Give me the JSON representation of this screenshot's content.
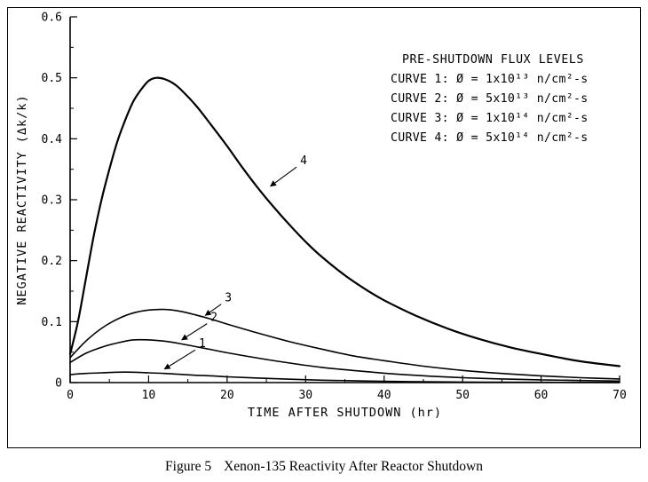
{
  "figure": {
    "caption_label": "Figure 5",
    "caption_text": "Xenon-135 Reactivity After Reactor Shutdown"
  },
  "chart_data": {
    "type": "line",
    "title": "",
    "xlabel": "TIME AFTER SHUTDOWN (hr)",
    "ylabel": "NEGATIVE REACTIVITY (Δk/k)",
    "xlim": [
      0,
      70
    ],
    "ylim": [
      0,
      0.6
    ],
    "grid": false,
    "x_ticks": [
      0,
      10,
      20,
      30,
      40,
      50,
      60,
      70
    ],
    "x_minor_ticks": [
      5,
      15,
      25,
      35,
      45,
      55,
      65
    ],
    "y_ticks": [
      0,
      0.1,
      0.2,
      0.3,
      0.4,
      0.5,
      0.6
    ],
    "y_tick_labels": [
      "0",
      "0.1",
      "0.2",
      "0.3",
      "0.4",
      "0.5",
      "0.6"
    ],
    "y_minor_ticks": [
      0.05,
      0.15,
      0.25,
      0.35,
      0.45,
      0.55
    ],
    "legend": {
      "title": "PRE-SHUTDOWN FLUX LEVELS",
      "position": "top-right",
      "entries": [
        "CURVE 1: Ø = 1x10¹³ n/cm²-s",
        "CURVE 2: Ø = 5x10¹³ n/cm²-s",
        "CURVE 3: Ø = 1x10¹⁴ n/cm²-s",
        "CURVE 4: Ø = 5x10¹⁴ n/cm²-s"
      ]
    },
    "series": [
      {
        "name": "Curve 1",
        "flux": "1x10¹³ n/cm²-s",
        "points": [
          [
            0,
            0.013
          ],
          [
            2,
            0.015
          ],
          [
            4,
            0.016
          ],
          [
            6,
            0.017
          ],
          [
            8,
            0.017
          ],
          [
            10,
            0.016
          ],
          [
            12,
            0.015
          ],
          [
            14,
            0.0135
          ],
          [
            16,
            0.012
          ],
          [
            18,
            0.011
          ],
          [
            20,
            0.0095
          ],
          [
            24,
            0.0075
          ],
          [
            28,
            0.0055
          ],
          [
            32,
            0.004
          ],
          [
            36,
            0.003
          ],
          [
            40,
            0.002
          ],
          [
            45,
            0.0013
          ],
          [
            50,
            0.0009
          ],
          [
            55,
            0.0006
          ],
          [
            60,
            0.0004
          ],
          [
            65,
            0.0003
          ],
          [
            70,
            0.0002
          ]
        ]
      },
      {
        "name": "Curve 2",
        "flux": "5x10¹³ n/cm²-s",
        "points": [
          [
            0,
            0.033
          ],
          [
            2,
            0.048
          ],
          [
            4,
            0.058
          ],
          [
            6,
            0.065
          ],
          [
            8,
            0.07
          ],
          [
            10,
            0.07
          ],
          [
            12,
            0.068
          ],
          [
            14,
            0.064
          ],
          [
            16,
            0.059
          ],
          [
            18,
            0.054
          ],
          [
            20,
            0.049
          ],
          [
            24,
            0.04
          ],
          [
            28,
            0.032
          ],
          [
            32,
            0.025
          ],
          [
            36,
            0.02
          ],
          [
            40,
            0.0155
          ],
          [
            45,
            0.0112
          ],
          [
            50,
            0.008
          ],
          [
            55,
            0.006
          ],
          [
            60,
            0.0045
          ],
          [
            65,
            0.0033
          ],
          [
            70,
            0.0025
          ]
        ]
      },
      {
        "name": "Curve 3",
        "flux": "1x10¹⁴ n/cm²-s",
        "points": [
          [
            0,
            0.041
          ],
          [
            2,
            0.068
          ],
          [
            4,
            0.089
          ],
          [
            6,
            0.104
          ],
          [
            8,
            0.114
          ],
          [
            10,
            0.119
          ],
          [
            12,
            0.12
          ],
          [
            14,
            0.117
          ],
          [
            16,
            0.111
          ],
          [
            18,
            0.104
          ],
          [
            20,
            0.096
          ],
          [
            24,
            0.081
          ],
          [
            28,
            0.067
          ],
          [
            32,
            0.055
          ],
          [
            36,
            0.044
          ],
          [
            40,
            0.036
          ],
          [
            45,
            0.027
          ],
          [
            50,
            0.02
          ],
          [
            55,
            0.015
          ],
          [
            60,
            0.011
          ],
          [
            65,
            0.008
          ],
          [
            70,
            0.006
          ]
        ]
      },
      {
        "name": "Curve 4",
        "flux": "5x10¹⁴ n/cm²-s",
        "points": [
          [
            0,
            0.047
          ],
          [
            1,
            0.1
          ],
          [
            2,
            0.17
          ],
          [
            3,
            0.24
          ],
          [
            4,
            0.3
          ],
          [
            5,
            0.35
          ],
          [
            6,
            0.395
          ],
          [
            7,
            0.43
          ],
          [
            8,
            0.46
          ],
          [
            9,
            0.48
          ],
          [
            10,
            0.495
          ],
          [
            11,
            0.5
          ],
          [
            12,
            0.498
          ],
          [
            13,
            0.492
          ],
          [
            14,
            0.482
          ],
          [
            16,
            0.455
          ],
          [
            18,
            0.422
          ],
          [
            20,
            0.388
          ],
          [
            22,
            0.352
          ],
          [
            24,
            0.318
          ],
          [
            26,
            0.287
          ],
          [
            28,
            0.258
          ],
          [
            30,
            0.231
          ],
          [
            32,
            0.207
          ],
          [
            35,
            0.176
          ],
          [
            38,
            0.15
          ],
          [
            40,
            0.135
          ],
          [
            44,
            0.11
          ],
          [
            48,
            0.089
          ],
          [
            52,
            0.072
          ],
          [
            56,
            0.058
          ],
          [
            60,
            0.047
          ],
          [
            65,
            0.035
          ],
          [
            70,
            0.027
          ]
        ]
      }
    ],
    "annotations": [
      {
        "label": "4",
        "text_xy": [
          29.3,
          0.358
        ],
        "tip_xy": [
          25.5,
          0.322
        ]
      },
      {
        "label": "3",
        "text_xy": [
          19.7,
          0.133
        ],
        "tip_xy": [
          17.2,
          0.11
        ]
      },
      {
        "label": "2",
        "text_xy": [
          17.9,
          0.101
        ],
        "tip_xy": [
          14.2,
          0.07
        ]
      },
      {
        "label": "1",
        "text_xy": [
          16.4,
          0.058
        ],
        "tip_xy": [
          12.0,
          0.022
        ]
      }
    ]
  }
}
